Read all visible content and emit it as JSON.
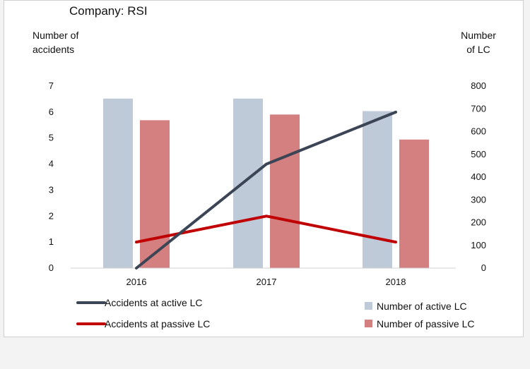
{
  "chart_data": {
    "type": "bar+line",
    "title": "Company: RSI",
    "categories": [
      "2016",
      "2017",
      "2018"
    ],
    "y_left": {
      "label_lines": [
        "Number of",
        "accidents"
      ],
      "ticks": [
        "0",
        "1",
        "2",
        "3",
        "4",
        "5",
        "6",
        "7"
      ],
      "range": [
        0,
        7
      ]
    },
    "y_right": {
      "label_lines": [
        "Number",
        "of LC"
      ],
      "ticks": [
        "0",
        "100",
        "200",
        "300",
        "400",
        "500",
        "600",
        "700",
        "800"
      ],
      "range": [
        0,
        800
      ]
    },
    "bar_series": [
      {
        "name": "Number of active LC",
        "axis": "right",
        "color": "#bfcad8",
        "values": [
          745,
          745,
          690
        ]
      },
      {
        "name": "Number of passive LC",
        "axis": "right",
        "color": "#d58080",
        "values": [
          650,
          675,
          565
        ]
      }
    ],
    "line_series": [
      {
        "name": "Accidents at active LC",
        "axis": "left",
        "color": "#3b4556",
        "values": [
          0,
          4,
          6
        ]
      },
      {
        "name": "Accidents at passive LC",
        "axis": "left",
        "color": "#c00000",
        "values": [
          1,
          2,
          1
        ]
      }
    ],
    "grid": false,
    "legend_placement": "bottom"
  }
}
